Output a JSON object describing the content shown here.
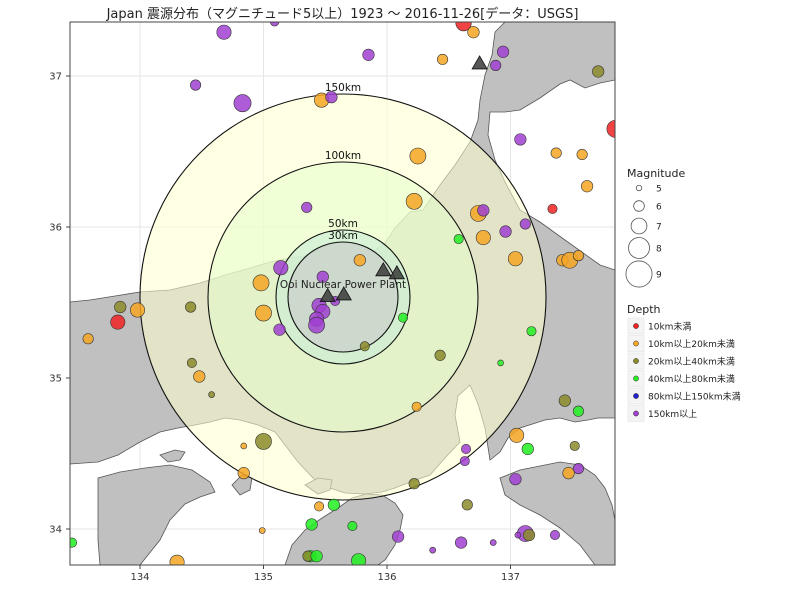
{
  "title": "Japan 震源分布（マグニチュード5以上）1923 ～ 2016-11-26[データ：USGS]",
  "plant_label": "Ooi Nuclear Power Plant",
  "rings": [
    {
      "km": 30,
      "label": "30km"
    },
    {
      "km": 50,
      "label": "50km"
    },
    {
      "km": 100,
      "label": "100km"
    },
    {
      "km": 150,
      "label": "150km"
    }
  ],
  "axes": {
    "x_ticks": [
      {
        "v": 134,
        "label": "134"
      },
      {
        "v": 135,
        "label": "135"
      },
      {
        "v": 136,
        "label": "136"
      },
      {
        "v": 137,
        "label": "137"
      }
    ],
    "y_ticks": [
      {
        "v": 34,
        "label": "34"
      },
      {
        "v": 35,
        "label": "35"
      },
      {
        "v": 36,
        "label": "36"
      },
      {
        "v": 37,
        "label": "37"
      }
    ]
  },
  "legend_magnitude": {
    "title": "Magnitude",
    "items": [
      {
        "label": "5",
        "m": 5
      },
      {
        "label": "6",
        "m": 6
      },
      {
        "label": "7",
        "m": 7
      },
      {
        "label": "8",
        "m": 8
      },
      {
        "label": "9",
        "m": 9
      }
    ]
  },
  "legend_depth": {
    "title": "Depth",
    "items": [
      {
        "label": "10km未満",
        "color": "#ee2222"
      },
      {
        "label": "10km以上20km未満",
        "color": "#f5a623"
      },
      {
        "label": "20km以上40km未満",
        "color": "#8b8b2a"
      },
      {
        "label": "40km以上80km未満",
        "color": "#22ee22"
      },
      {
        "label": "80km以上150km未満",
        "color": "#2222cc"
      },
      {
        "label": "150km以上",
        "color": "#a040d0"
      }
    ]
  },
  "colors": {
    "sea": "#ffffff",
    "land": "#c0c0c0",
    "ring150": "#ffffcc",
    "ring100": "#e6ffcc",
    "ring50": "#c8ebd6",
    "ring30": "#c8c8c8",
    "red": "#ee2222",
    "orange": "#f5a623",
    "olive": "#8b8b2a",
    "green": "#22ee22",
    "blue": "#2222cc",
    "purple": "#a040d0"
  },
  "plants": [
    {
      "lon": 135.52,
      "lat": 35.54
    },
    {
      "lon": 135.65,
      "lat": 35.55
    },
    {
      "lon": 135.97,
      "lat": 35.71
    },
    {
      "lon": 136.08,
      "lat": 35.69
    },
    {
      "lon": 136.75,
      "lat": 37.08
    }
  ],
  "quakes": [
    {
      "lon": 136.62,
      "lat": 37.35,
      "m": 6.7,
      "c": "red"
    },
    {
      "lon": 136.7,
      "lat": 37.29,
      "m": 6.0,
      "c": "orange"
    },
    {
      "lon": 135.09,
      "lat": 37.36,
      "m": 5.5,
      "c": "purple"
    },
    {
      "lon": 134.68,
      "lat": 37.29,
      "m": 6.5,
      "c": "purple"
    },
    {
      "lon": 135.85,
      "lat": 37.14,
      "m": 6.0,
      "c": "purple"
    },
    {
      "lon": 136.45,
      "lat": 37.11,
      "m": 5.8,
      "c": "orange"
    },
    {
      "lon": 136.94,
      "lat": 37.16,
      "m": 6.0,
      "c": "purple"
    },
    {
      "lon": 136.88,
      "lat": 37.07,
      "m": 5.8,
      "c": "purple"
    },
    {
      "lon": 134.45,
      "lat": 36.94,
      "m": 5.8,
      "c": "purple"
    },
    {
      "lon": 134.83,
      "lat": 36.82,
      "m": 7.0,
      "c": "purple"
    },
    {
      "lon": 135.47,
      "lat": 36.84,
      "m": 6.5,
      "c": "orange"
    },
    {
      "lon": 135.55,
      "lat": 36.86,
      "m": 6.0,
      "c": "purple"
    },
    {
      "lon": 137.71,
      "lat": 37.03,
      "m": 6.0,
      "c": "olive"
    },
    {
      "lon": 137.85,
      "lat": 36.65,
      "m": 7.0,
      "c": "red"
    },
    {
      "lon": 137.08,
      "lat": 36.58,
      "m": 6.0,
      "c": "purple"
    },
    {
      "lon": 137.37,
      "lat": 36.49,
      "m": 5.8,
      "c": "orange"
    },
    {
      "lon": 137.58,
      "lat": 36.48,
      "m": 5.8,
      "c": "orange"
    },
    {
      "lon": 136.25,
      "lat": 36.47,
      "m": 6.8,
      "c": "orange"
    },
    {
      "lon": 137.62,
      "lat": 36.27,
      "m": 6.0,
      "c": "orange"
    },
    {
      "lon": 136.22,
      "lat": 36.17,
      "m": 6.8,
      "c": "orange"
    },
    {
      "lon": 135.35,
      "lat": 36.13,
      "m": 5.8,
      "c": "purple"
    },
    {
      "lon": 136.74,
      "lat": 36.09,
      "m": 6.8,
      "c": "orange"
    },
    {
      "lon": 136.78,
      "lat": 36.11,
      "m": 6.0,
      "c": "purple"
    },
    {
      "lon": 137.34,
      "lat": 36.12,
      "m": 5.6,
      "c": "red"
    },
    {
      "lon": 137.12,
      "lat": 36.02,
      "m": 5.8,
      "c": "purple"
    },
    {
      "lon": 136.78,
      "lat": 35.93,
      "m": 6.5,
      "c": "orange"
    },
    {
      "lon": 136.58,
      "lat": 35.92,
      "m": 5.6,
      "c": "green"
    },
    {
      "lon": 136.96,
      "lat": 35.97,
      "m": 6.0,
      "c": "purple"
    },
    {
      "lon": 137.04,
      "lat": 35.79,
      "m": 6.5,
      "c": "orange"
    },
    {
      "lon": 137.42,
      "lat": 35.78,
      "m": 6.0,
      "c": "orange"
    },
    {
      "lon": 137.48,
      "lat": 35.78,
      "m": 6.8,
      "c": "orange"
    },
    {
      "lon": 137.55,
      "lat": 35.81,
      "m": 5.8,
      "c": "orange"
    },
    {
      "lon": 135.78,
      "lat": 35.78,
      "m": 6.0,
      "c": "orange"
    },
    {
      "lon": 135.14,
      "lat": 35.73,
      "m": 6.5,
      "c": "purple"
    },
    {
      "lon": 134.98,
      "lat": 35.63,
      "m": 6.8,
      "c": "orange"
    },
    {
      "lon": 135.48,
      "lat": 35.67,
      "m": 6.0,
      "c": "purple"
    },
    {
      "lon": 133.84,
      "lat": 35.47,
      "m": 6.0,
      "c": "olive"
    },
    {
      "lon": 133.82,
      "lat": 35.37,
      "m": 6.5,
      "c": "red"
    },
    {
      "lon": 133.98,
      "lat": 35.45,
      "m": 6.5,
      "c": "orange"
    },
    {
      "lon": 134.41,
      "lat": 35.47,
      "m": 5.8,
      "c": "olive"
    },
    {
      "lon": 135.0,
      "lat": 35.43,
      "m": 6.8,
      "c": "orange"
    },
    {
      "lon": 135.45,
      "lat": 35.48,
      "m": 6.5,
      "c": "purple"
    },
    {
      "lon": 135.48,
      "lat": 35.44,
      "m": 6.5,
      "c": "purple"
    },
    {
      "lon": 135.43,
      "lat": 35.39,
      "m": 6.5,
      "c": "purple"
    },
    {
      "lon": 135.43,
      "lat": 35.35,
      "m": 6.8,
      "c": "purple"
    },
    {
      "lon": 135.13,
      "lat": 35.32,
      "m": 6.0,
      "c": "purple"
    },
    {
      "lon": 135.58,
      "lat": 35.51,
      "m": 5.6,
      "c": "purple"
    },
    {
      "lon": 133.58,
      "lat": 35.26,
      "m": 5.8,
      "c": "orange"
    },
    {
      "lon": 136.13,
      "lat": 35.4,
      "m": 5.6,
      "c": "green"
    },
    {
      "lon": 137.17,
      "lat": 35.31,
      "m": 5.6,
      "c": "green"
    },
    {
      "lon": 135.82,
      "lat": 35.21,
      "m": 5.6,
      "c": "olive"
    },
    {
      "lon": 136.43,
      "lat": 35.15,
      "m": 5.8,
      "c": "olive"
    },
    {
      "lon": 134.42,
      "lat": 35.1,
      "m": 5.6,
      "c": "olive"
    },
    {
      "lon": 136.92,
      "lat": 35.1,
      "m": 5.0,
      "c": "green"
    },
    {
      "lon": 134.48,
      "lat": 35.01,
      "m": 6.0,
      "c": "orange"
    },
    {
      "lon": 134.58,
      "lat": 34.89,
      "m": 5.0,
      "c": "olive"
    },
    {
      "lon": 137.44,
      "lat": 34.85,
      "m": 6.0,
      "c": "olive"
    },
    {
      "lon": 137.55,
      "lat": 34.78,
      "m": 5.8,
      "c": "green"
    },
    {
      "lon": 136.24,
      "lat": 34.81,
      "m": 5.6,
      "c": "orange"
    },
    {
      "lon": 137.05,
      "lat": 34.62,
      "m": 6.5,
      "c": "orange"
    },
    {
      "lon": 135.0,
      "lat": 34.58,
      "m": 6.8,
      "c": "olive"
    },
    {
      "lon": 134.84,
      "lat": 34.55,
      "m": 5.0,
      "c": "orange"
    },
    {
      "lon": 137.14,
      "lat": 34.53,
      "m": 6.0,
      "c": "green"
    },
    {
      "lon": 137.52,
      "lat": 34.55,
      "m": 5.6,
      "c": "olive"
    },
    {
      "lon": 136.64,
      "lat": 34.53,
      "m": 5.6,
      "c": "purple"
    },
    {
      "lon": 136.63,
      "lat": 34.45,
      "m": 5.6,
      "c": "purple"
    },
    {
      "lon": 137.55,
      "lat": 34.4,
      "m": 5.8,
      "c": "purple"
    },
    {
      "lon": 137.47,
      "lat": 34.37,
      "m": 6.0,
      "c": "orange"
    },
    {
      "lon": 134.84,
      "lat": 34.37,
      "m": 6.0,
      "c": "orange"
    },
    {
      "lon": 137.04,
      "lat": 34.33,
      "m": 6.0,
      "c": "purple"
    },
    {
      "lon": 136.22,
      "lat": 34.3,
      "m": 5.8,
      "c": "olive"
    },
    {
      "lon": 135.45,
      "lat": 34.15,
      "m": 5.6,
      "c": "orange"
    },
    {
      "lon": 135.57,
      "lat": 34.16,
      "m": 6.0,
      "c": "green"
    },
    {
      "lon": 136.65,
      "lat": 34.16,
      "m": 5.8,
      "c": "olive"
    },
    {
      "lon": 135.39,
      "lat": 34.03,
      "m": 6.0,
      "c": "green"
    },
    {
      "lon": 135.72,
      "lat": 34.02,
      "m": 5.6,
      "c": "green"
    },
    {
      "lon": 134.99,
      "lat": 33.99,
      "m": 5.0,
      "c": "orange"
    },
    {
      "lon": 137.12,
      "lat": 33.97,
      "m": 6.8,
      "c": "purple"
    },
    {
      "lon": 137.15,
      "lat": 33.96,
      "m": 6.0,
      "c": "olive"
    },
    {
      "lon": 137.06,
      "lat": 33.96,
      "m": 5.0,
      "c": "purple"
    },
    {
      "lon": 137.36,
      "lat": 33.96,
      "m": 5.6,
      "c": "purple"
    },
    {
      "lon": 136.09,
      "lat": 33.95,
      "m": 6.0,
      "c": "purple"
    },
    {
      "lon": 136.6,
      "lat": 33.91,
      "m": 6.0,
      "c": "purple"
    },
    {
      "lon": 136.86,
      "lat": 33.91,
      "m": 5.0,
      "c": "purple"
    },
    {
      "lon": 133.45,
      "lat": 33.91,
      "m": 5.6,
      "c": "green"
    },
    {
      "lon": 135.38,
      "lat": 33.82,
      "m": 6.0,
      "c": "green"
    },
    {
      "lon": 135.36,
      "lat": 33.82,
      "m": 5.8,
      "c": "olive"
    },
    {
      "lon": 135.43,
      "lat": 33.82,
      "m": 6.0,
      "c": "green"
    },
    {
      "lon": 135.77,
      "lat": 33.79,
      "m": 6.5,
      "c": "green"
    },
    {
      "lon": 134.3,
      "lat": 33.78,
      "m": 6.5,
      "c": "orange"
    },
    {
      "lon": 136.37,
      "lat": 33.86,
      "m": 5.0,
      "c": "purple"
    }
  ]
}
